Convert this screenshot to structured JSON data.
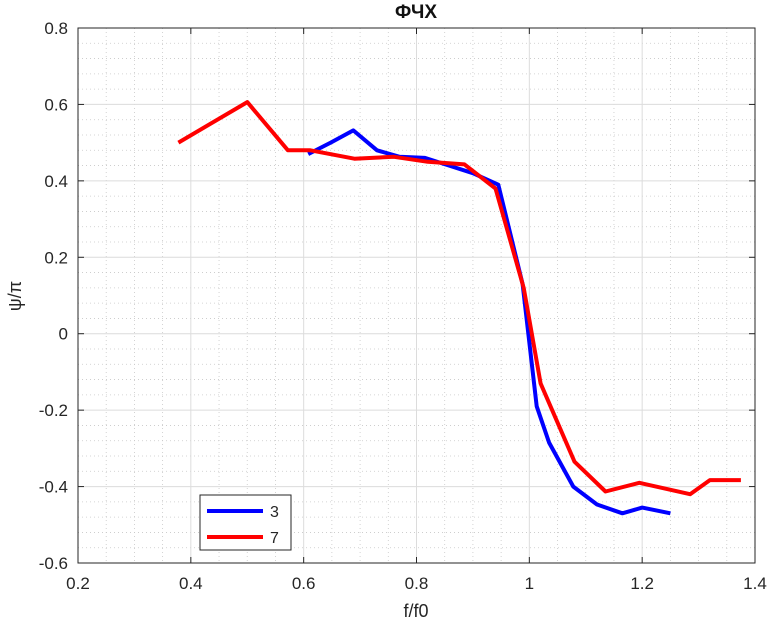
{
  "chart_data": {
    "type": "line",
    "title": "ФЧХ",
    "xlabel": "f/f0",
    "ylabel": "ψ/π",
    "xlim": [
      0.2,
      1.4
    ],
    "ylim": [
      -0.6,
      0.8
    ],
    "xticks": [
      0.2,
      0.4,
      0.6,
      0.8,
      1,
      1.2,
      1.4
    ],
    "xtick_labels": [
      "0.2",
      "0.4",
      "0.6",
      "0.8",
      "1",
      "1.2",
      "1.4"
    ],
    "yticks": [
      -0.6,
      -0.4,
      -0.2,
      0,
      0.2,
      0.4,
      0.6,
      0.8
    ],
    "ytick_labels": [
      "-0.6",
      "-0.4",
      "-0.2",
      "0",
      "0.2",
      "0.4",
      "0.6",
      "0.8"
    ],
    "grid": true,
    "minor_grid": true,
    "legend_position": "bottom-left",
    "series": [
      {
        "name": "3",
        "color": "#0000ff",
        "x": [
          0.608,
          0.648,
          0.688,
          0.73,
          0.77,
          0.815,
          0.858,
          0.9,
          0.945,
          0.988,
          1.013,
          1.035,
          1.078,
          1.12,
          1.165,
          1.2,
          1.25
        ],
        "y": [
          0.47,
          0.5,
          0.532,
          0.48,
          0.463,
          0.46,
          0.44,
          0.42,
          0.39,
          0.13,
          -0.19,
          -0.285,
          -0.4,
          -0.447,
          -0.47,
          -0.455,
          -0.47
        ]
      },
      {
        "name": "7",
        "color": "#ff0000",
        "x": [
          0.378,
          0.5,
          0.572,
          0.612,
          0.69,
          0.76,
          0.82,
          0.885,
          0.94,
          0.99,
          1.02,
          1.08,
          1.135,
          1.195,
          1.285,
          1.32,
          1.375
        ],
        "y": [
          0.5,
          0.606,
          0.48,
          0.48,
          0.458,
          0.463,
          0.45,
          0.443,
          0.38,
          0.12,
          -0.13,
          -0.335,
          -0.413,
          -0.39,
          -0.42,
          -0.383,
          -0.383
        ]
      }
    ]
  }
}
